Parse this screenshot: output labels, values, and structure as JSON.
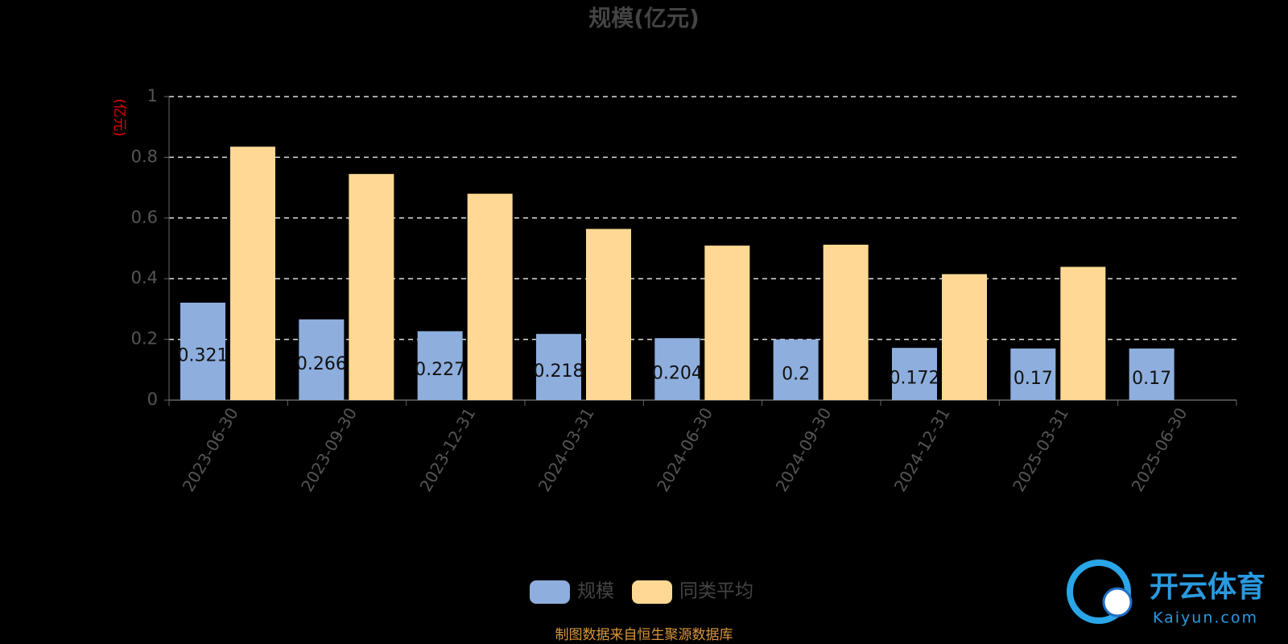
{
  "chart_data": {
    "type": "bar",
    "title": "规模(亿元)",
    "y_label": "(亿元)",
    "categories": [
      "2023-06-30",
      "2023-09-30",
      "2023-12-31",
      "2024-03-31",
      "2024-06-30",
      "2024-09-30",
      "2024-12-31",
      "2025-03-31",
      "2025-06-30"
    ],
    "series": [
      {
        "name": "规模",
        "color": "#8eaedd",
        "values": [
          0.321,
          0.266,
          0.227,
          0.218,
          0.204,
          0.2,
          0.172,
          0.17,
          0.17
        ]
      },
      {
        "name": "同类平均",
        "color": "#ffd994",
        "values": [
          0.835,
          0.745,
          0.68,
          0.564,
          0.509,
          0.512,
          0.415,
          0.439,
          null
        ]
      }
    ],
    "ylim": [
      0,
      1
    ],
    "yticks": [
      0,
      0.2,
      0.4,
      0.6,
      0.8,
      1
    ],
    "grid": true,
    "footer": "制图数据来自恒生聚源数据库",
    "watermark": {
      "brand": "开云体育",
      "site": "Kaiyun.com"
    }
  }
}
